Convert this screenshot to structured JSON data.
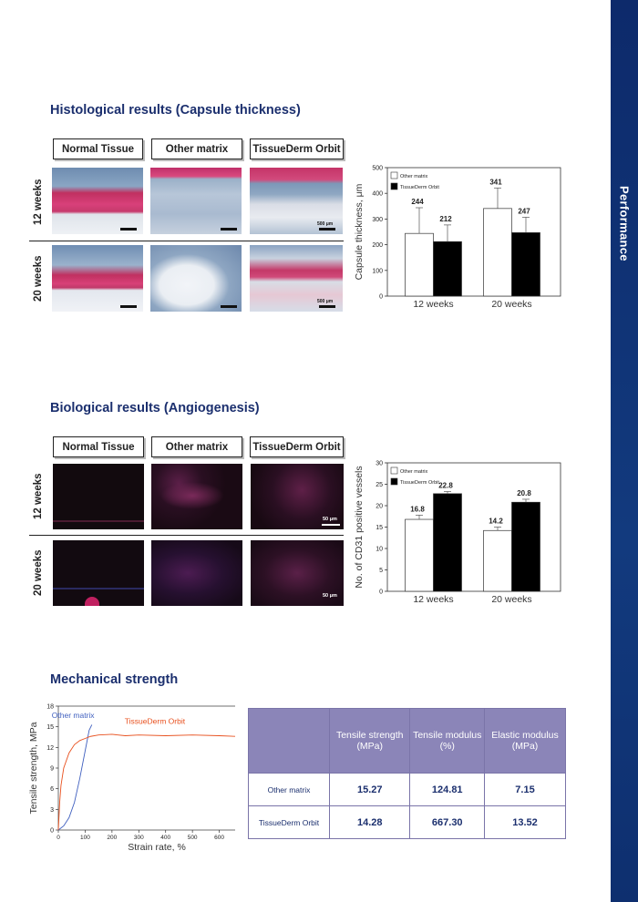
{
  "sidebar": {
    "label": "Performance"
  },
  "histology": {
    "title": "Histological results (Capsule thickness)",
    "columns": [
      "Normal Tissue",
      "Other matrix",
      "TissueDerm Orbit"
    ],
    "rows": [
      "12 weeks",
      "20 weeks"
    ],
    "scale_label": "500 μm"
  },
  "angiogenesis": {
    "title": "Biological results (Angiogenesis)",
    "columns": [
      "Normal Tissue",
      "Other matrix",
      "TissueDerm Orbit"
    ],
    "rows": [
      "12 weeks",
      "20 weeks"
    ],
    "scale_label": "50 μm"
  },
  "mechanical": {
    "title": "Mechanical strength",
    "table": {
      "headers": [
        "Tensile strength (MPa)",
        "Tensile modulus (%)",
        "Elastic modulus (MPa)"
      ],
      "rows": [
        {
          "name": "Other matrix",
          "values": [
            "15.27",
            "124.81",
            "7.15"
          ]
        },
        {
          "name": "TissueDerm Orbit",
          "values": [
            "14.28",
            "667.30",
            "13.52"
          ]
        }
      ]
    }
  },
  "colors": {
    "primary": "#1b2f6e",
    "sidebar": "#123a7e",
    "table_header": "#8b85b8",
    "orange": "#e8501e",
    "blue_line": "#3f5fbf"
  },
  "chart_data": [
    {
      "type": "bar",
      "categories": [
        "12 weeks",
        "20 weeks"
      ],
      "series": [
        {
          "name": "Other matrix",
          "color": "#ffffff",
          "values": [
            244,
            341
          ],
          "errors": [
            100,
            80
          ]
        },
        {
          "name": "TissueDerm Orbit",
          "color": "#000000",
          "values": [
            212,
            247
          ],
          "errors": [
            65,
            60
          ]
        }
      ],
      "ylabel": "Capsule thickness, μm",
      "ylim": [
        0,
        500
      ],
      "yticks": [
        0,
        100,
        200,
        300,
        400,
        500
      ],
      "legend": "top-left"
    },
    {
      "type": "bar",
      "categories": [
        "12 weeks",
        "20 weeks"
      ],
      "series": [
        {
          "name": "Other matrix",
          "color": "#ffffff",
          "values": [
            16.8,
            14.2
          ],
          "errors": [
            1.0,
            0.8
          ]
        },
        {
          "name": "TissueDerm Orbit",
          "color": "#000000",
          "values": [
            22.8,
            20.8
          ],
          "errors": [
            0.5,
            0.7
          ]
        }
      ],
      "ylabel": "No. of CD31 positive vessels",
      "ylim": [
        0,
        30
      ],
      "yticks": [
        0,
        5,
        10,
        15,
        20,
        25,
        30
      ],
      "legend": "top-left"
    },
    {
      "type": "line",
      "xlabel": "Strain rate, %",
      "ylabel": "Tensile strength, MPa",
      "xlim": [
        0,
        700
      ],
      "ylim": [
        0,
        18
      ],
      "xticks": [
        0,
        100,
        200,
        300,
        400,
        500,
        600,
        700
      ],
      "yticks": [
        0,
        3,
        6,
        9,
        12,
        15,
        18
      ],
      "series": [
        {
          "name": "Other matrix",
          "color": "#3f5fbf",
          "x": [
            0,
            20,
            40,
            60,
            80,
            100,
            115,
            125
          ],
          "y": [
            0,
            0.6,
            1.8,
            4.0,
            7.5,
            11.5,
            14.5,
            15.3
          ]
        },
        {
          "name": "TissueDerm Orbit",
          "color": "#e8501e",
          "x": [
            0,
            5,
            10,
            20,
            40,
            60,
            80,
            100,
            120,
            150,
            200,
            250,
            300,
            400,
            500,
            600,
            665,
            667
          ],
          "y": [
            0,
            4,
            6.5,
            9,
            11.2,
            12.4,
            13.0,
            13.3,
            13.6,
            13.8,
            13.9,
            13.7,
            13.8,
            13.7,
            13.8,
            13.7,
            13.6,
            0
          ]
        }
      ]
    }
  ]
}
